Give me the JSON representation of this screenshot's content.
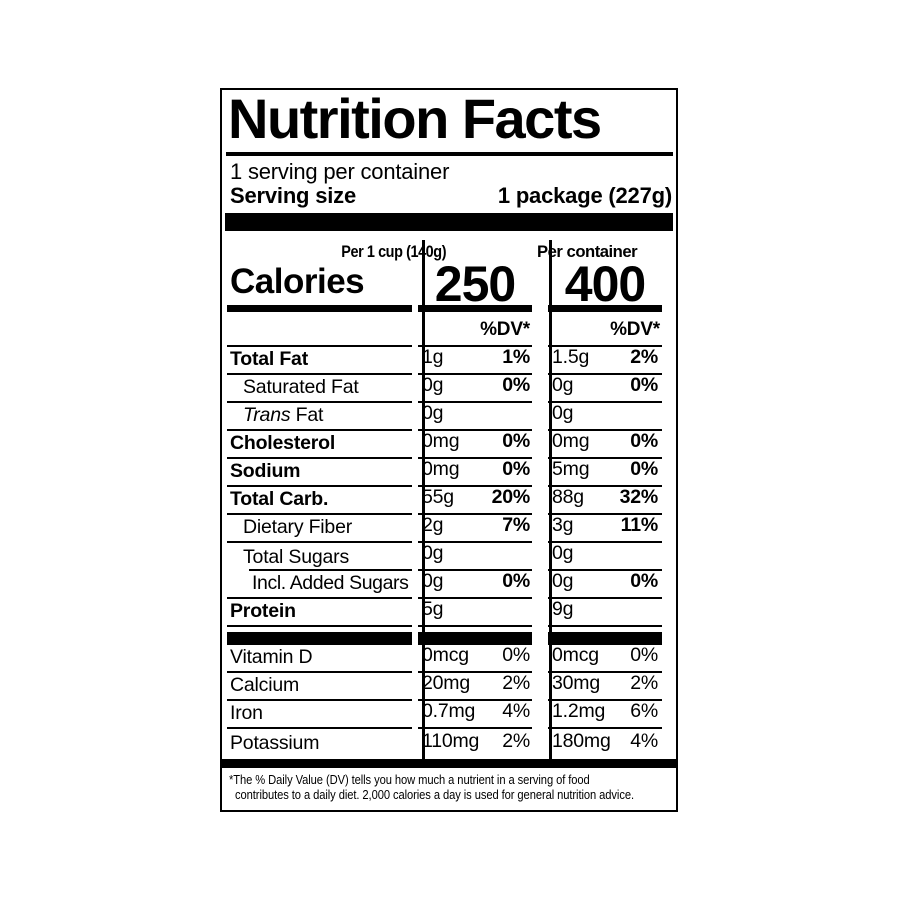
{
  "colors": {
    "ink": "#000000",
    "paper": "#ffffff"
  },
  "label": {
    "title": "Nutrition Facts",
    "servings_per_container": "1 serving per container",
    "serving_size": {
      "label": "Serving size",
      "value": "1 package (227g)"
    },
    "calories": {
      "label": "Calories",
      "col1_header": "Per 1 cup (140g)",
      "col1_value": "250",
      "col2_header": "Per container",
      "col2_value": "400",
      "dv_header_col1": "%DV*",
      "dv_header_col2": "%DV*"
    },
    "rows": [
      {
        "name": "Total Fat",
        "amt1": "1g",
        "pct1": "1%",
        "amt2": "1.5g",
        "pct2": "2%"
      },
      {
        "name": "Saturated Fat",
        "amt1": "0g",
        "pct1": "0%",
        "amt2": "0g",
        "pct2": "0%"
      },
      {
        "name_italic": "Trans",
        "name_rest": " Fat",
        "amt1": "0g",
        "pct1": "",
        "amt2": "0g",
        "pct2": ""
      },
      {
        "name": "Cholesterol",
        "amt1": "0mg",
        "pct1": "0%",
        "amt2": "0mg",
        "pct2": "0%"
      },
      {
        "name": "Sodium",
        "amt1": "0mg",
        "pct1": "0%",
        "amt2": "5mg",
        "pct2": "0%"
      },
      {
        "name": "Total Carb.",
        "amt1": "55g",
        "pct1": "20%",
        "amt2": "88g",
        "pct2": "32%"
      },
      {
        "name": "Dietary Fiber",
        "amt1": "2g",
        "pct1": "7%",
        "amt2": "3g",
        "pct2": "11%"
      },
      {
        "name": "Total Sugars",
        "amt1": "0g",
        "pct1": "",
        "amt2": "0g",
        "pct2": ""
      },
      {
        "name": "Incl. Added Sugars",
        "amt1": "0g",
        "pct1": "0%",
        "amt2": "0g",
        "pct2": "0%"
      },
      {
        "name": "Protein",
        "amt1": "5g",
        "pct1": "",
        "amt2": "9g",
        "pct2": ""
      }
    ],
    "vitamins": [
      {
        "name": "Vitamin D",
        "amt1": "0mcg",
        "pct1": "0%",
        "amt2": "0mcg",
        "pct2": "0%"
      },
      {
        "name": "Calcium",
        "amt1": "20mg",
        "pct1": "2%",
        "amt2": "30mg",
        "pct2": "2%"
      },
      {
        "name": "Iron",
        "amt1": "0.7mg",
        "pct1": "4%",
        "amt2": "1.2mg",
        "pct2": "6%"
      },
      {
        "name": "Potassium",
        "amt1": "110mg",
        "pct1": "2%",
        "amt2": "180mg",
        "pct2": "4%"
      }
    ],
    "footnote_line1": "*The % Daily Value (DV) tells you how much a nutrient in a serving of food",
    "footnote_line2": "contributes to a daily diet. 2,000 calories a day is used for general nutrition advice."
  }
}
